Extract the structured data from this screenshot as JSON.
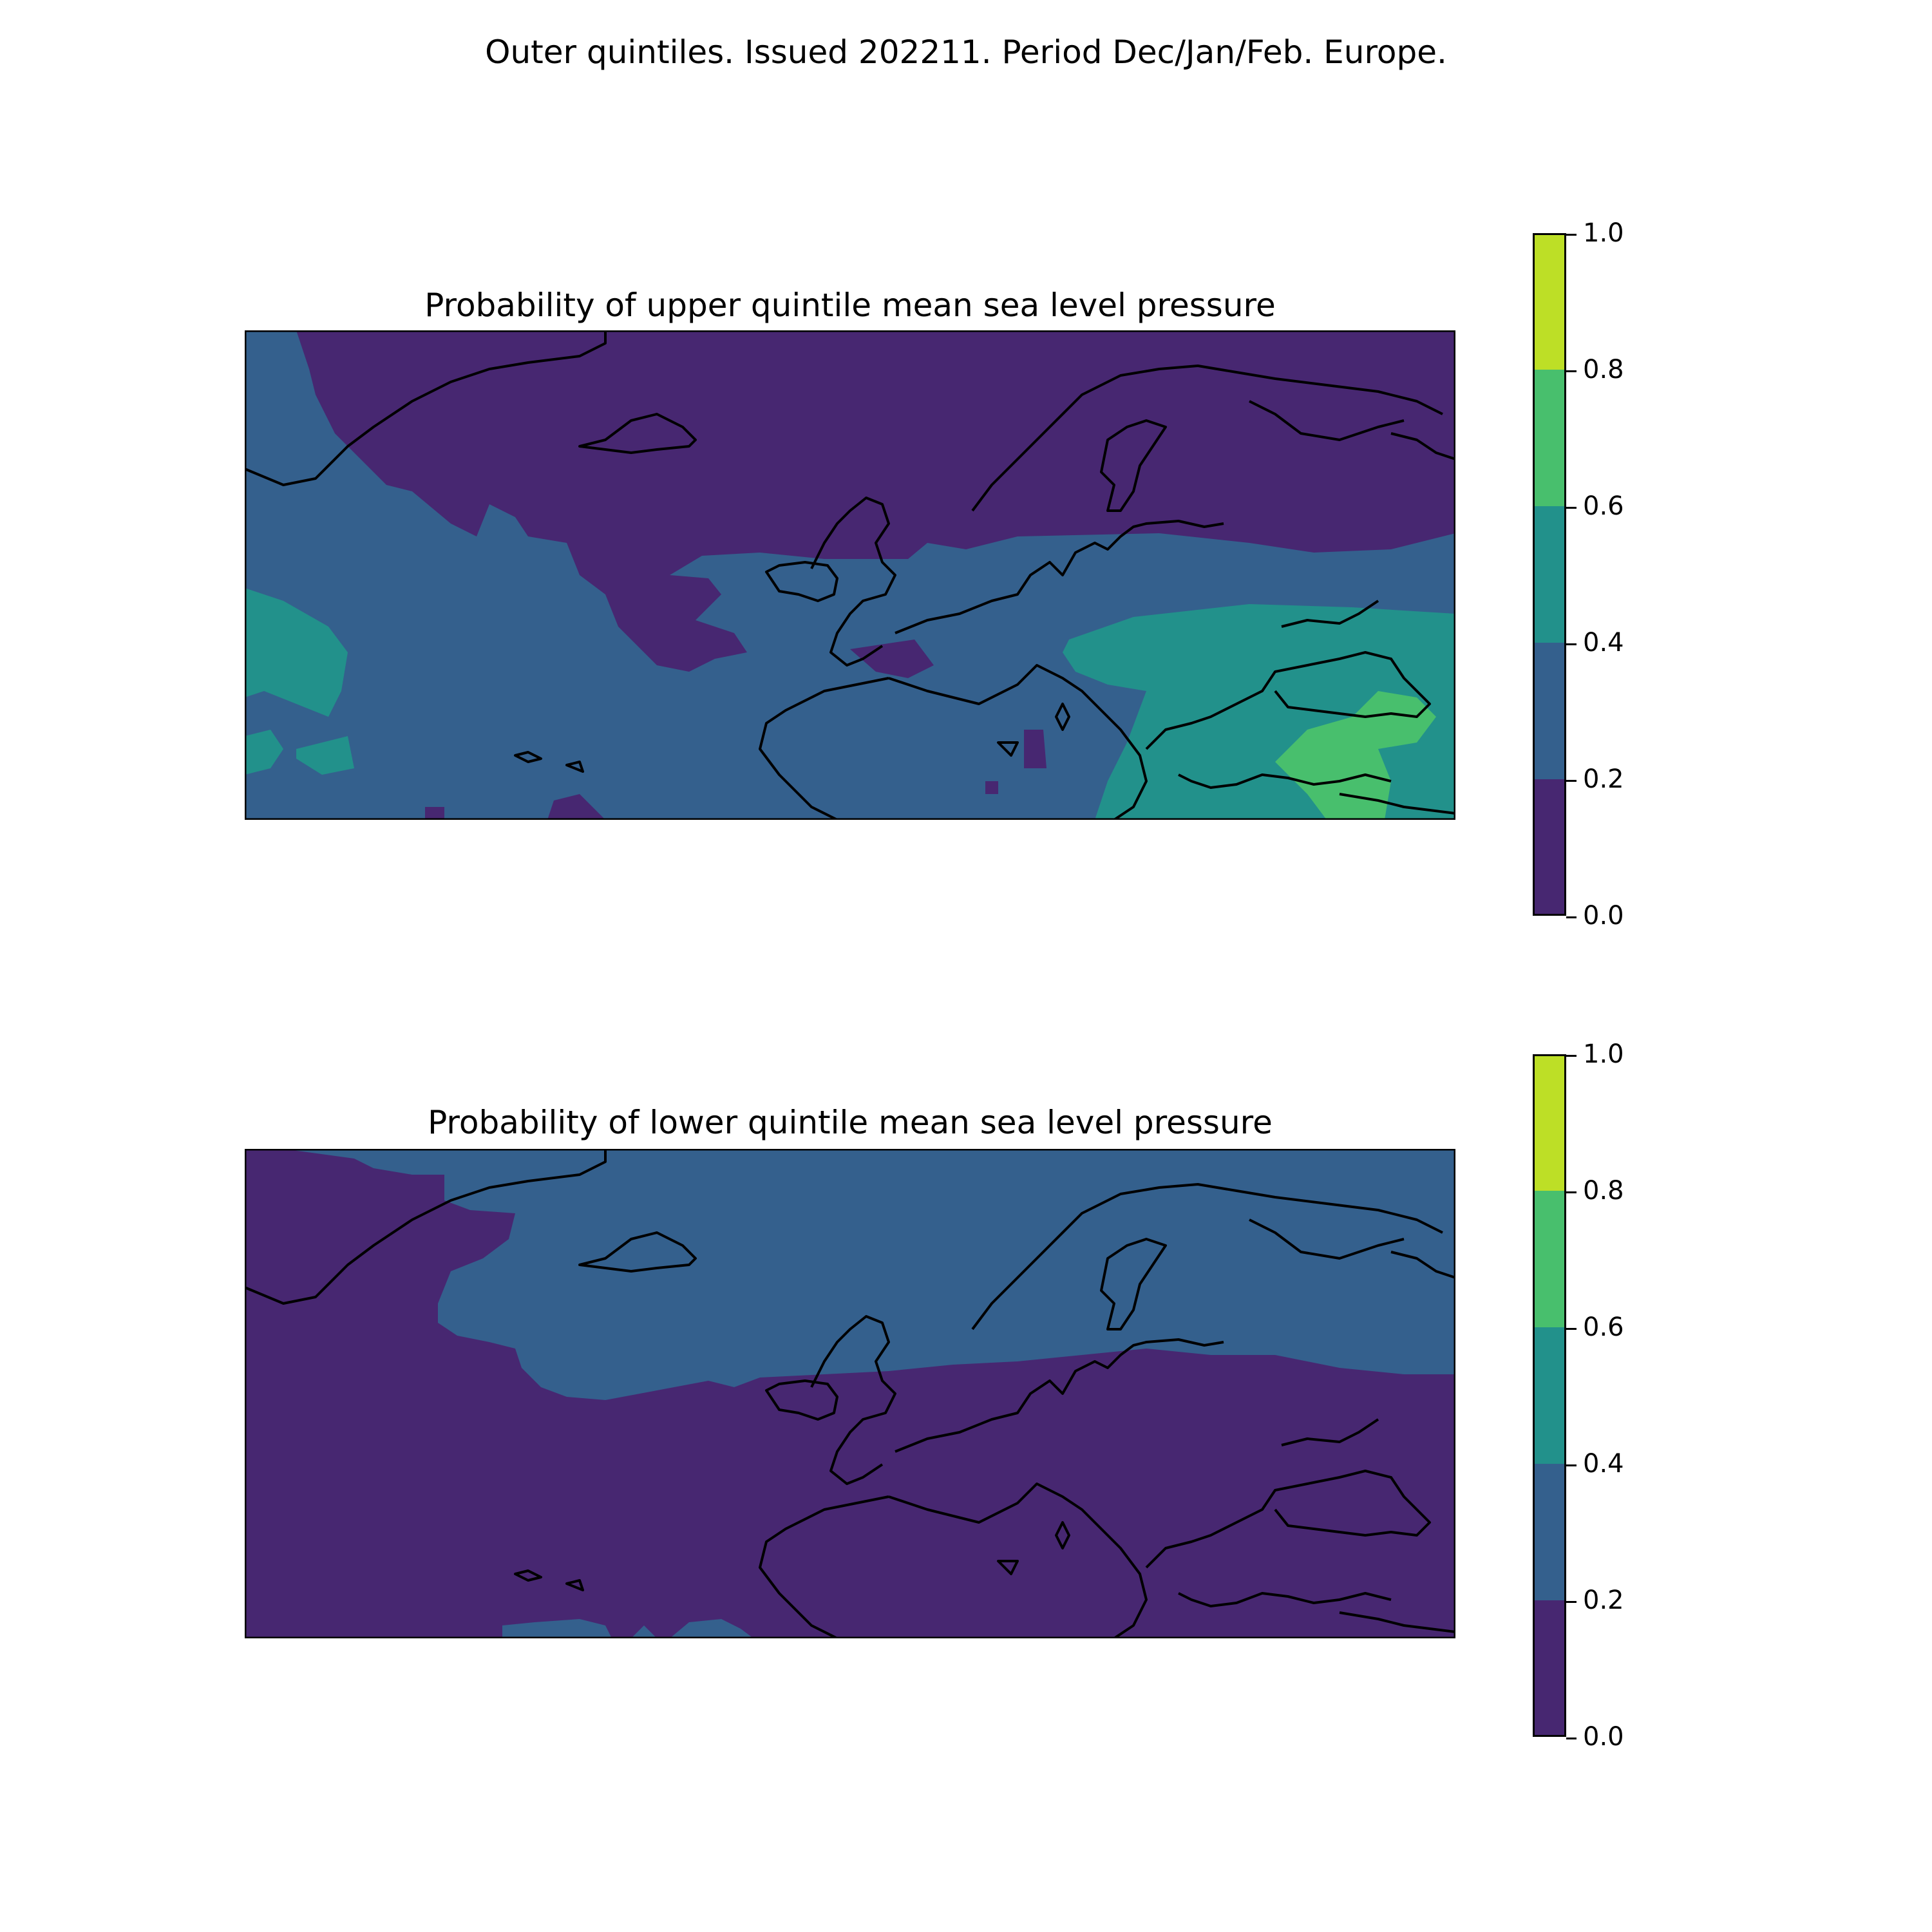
{
  "suptitle": "Outer quintiles. Issued 202211. Period Dec/Jan/Feb. Europe.",
  "colormap": {
    "levels": [
      0.0,
      0.2,
      0.4,
      0.6,
      0.8,
      1.0
    ],
    "colors": [
      "#472771",
      "#34608d",
      "#22918b",
      "#48bf6d",
      "#bddf26"
    ],
    "tick_labels": [
      "0.0",
      "0.2",
      "0.4",
      "0.6",
      "0.8",
      "1.0"
    ]
  },
  "panels": [
    {
      "title": "Probability of upper quintile mean sea level pressure",
      "background_class": 1,
      "regions": [
        {
          "name": "north-atlantic-nordic-high",
          "class": 0
        },
        {
          "name": "bay-of-biscay-pocket",
          "class": 0
        },
        {
          "name": "iberia-spot",
          "class": 0
        },
        {
          "name": "southern-edge-spots",
          "class": 0
        },
        {
          "name": "west-atlantic-band",
          "class": 2
        },
        {
          "name": "west-atlantic-small",
          "class": 2
        },
        {
          "name": "eastern-europe-turkey",
          "class": 2
        },
        {
          "name": "caucasus-turkey-core",
          "class": 3
        }
      ]
    },
    {
      "title": "Probability of lower quintile mean sea level pressure",
      "background_class": 0,
      "regions": [
        {
          "name": "northern-europe-band",
          "class": 1
        },
        {
          "name": "southern-atlantic-spots",
          "class": 1
        }
      ]
    }
  ]
}
